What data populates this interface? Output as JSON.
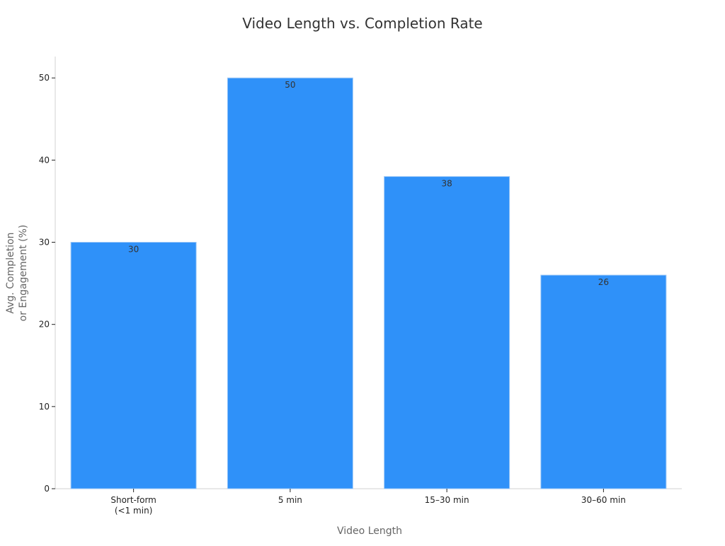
{
  "chart_data": {
    "type": "bar",
    "title": "Video Length vs. Completion Rate",
    "xlabel": "Video Length",
    "ylabel": [
      "Avg. Completion",
      "or Engagement (%)"
    ],
    "categories": [
      [
        "Short-form",
        "(<1 min)"
      ],
      [
        "5 min"
      ],
      [
        "15–30 min"
      ],
      [
        "30–60 min"
      ]
    ],
    "values": [
      30,
      50,
      38,
      26
    ],
    "data_labels": [
      "30",
      "50",
      "38",
      "26"
    ],
    "ylim": [
      0,
      52.6
    ],
    "yticks": [
      0,
      10,
      20,
      30,
      40,
      50
    ],
    "bar_color": "#2f91f9",
    "bar_edge_color": "#9fc9f7",
    "grid": false,
    "legend": "none"
  }
}
